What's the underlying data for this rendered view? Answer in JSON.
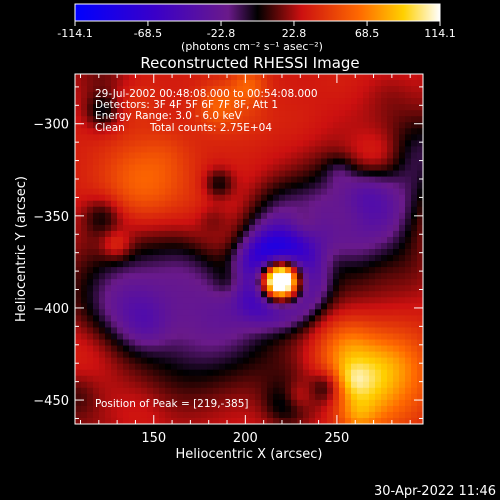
{
  "colorbar": {
    "ticks": [
      "-114.1",
      "-68.5",
      "-22.8",
      "22.8",
      "68.5",
      "114.1"
    ],
    "units": "(photons cm⁻² s⁻¹ asec⁻²)",
    "range": [
      -114.1,
      114.1
    ]
  },
  "chart_data": {
    "type": "heatmap",
    "title": "Reconstructed RHESSI Image",
    "xlabel": "Heliocentric X (arcsec)",
    "ylabel": "Heliocentric Y (arcsec)",
    "xlim": [
      107,
      297
    ],
    "ylim": [
      -463,
      -273
    ],
    "xticks": [
      150,
      200,
      250
    ],
    "yticks": [
      -300,
      -350,
      -400,
      -450
    ],
    "peak": {
      "x": 219,
      "y": -385,
      "value": 114.1
    },
    "annotations": {
      "time": "29-Jul-2002 00:48:08.000 to 00:54:08.000",
      "detectors": "Detectors: 3F 4F 5F 6F 7F 8F, Att 1",
      "energy": "Energy Range: 3.0 - 6.0 keV",
      "clean": "Clean",
      "counts": "Total counts: 2.75E+04",
      "peak_text": "Position of Peak = [219,-385]"
    }
  },
  "timestamp": "30-Apr-2022 11:46"
}
